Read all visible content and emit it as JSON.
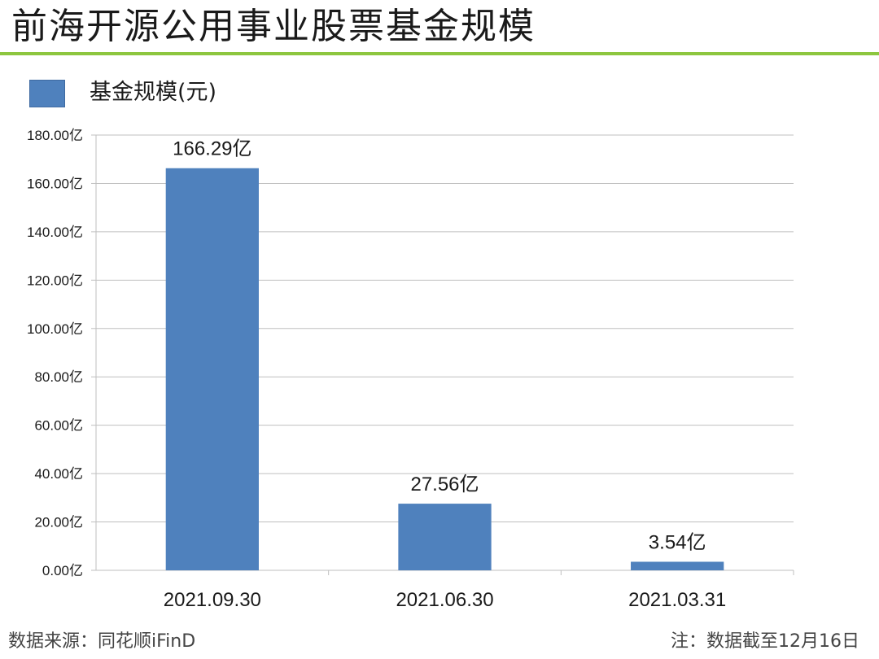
{
  "page": {
    "title": "前海开源公用事业股票基金规模",
    "accent_color": "#8dc63f"
  },
  "legend": {
    "label": "基金规模(元)",
    "color": "#4f81bd"
  },
  "chart_data": {
    "type": "bar",
    "categories": [
      "2021.09.30",
      "2021.06.30",
      "2021.03.31"
    ],
    "series": [
      {
        "name": "基金规模(元)",
        "values": [
          166.29,
          27.56,
          3.54
        ],
        "value_labels": [
          "166.29亿",
          "27.56亿",
          "3.54亿"
        ],
        "color": "#4f81bd"
      }
    ],
    "yticks": [
      "0.00亿",
      "20.00亿",
      "40.00亿",
      "60.00亿",
      "80.00亿",
      "100.00亿",
      "120.00亿",
      "140.00亿",
      "160.00亿",
      "180.00亿"
    ],
    "ylim": [
      0,
      180
    ],
    "ytick_step": 20,
    "grid": true,
    "legend_position": "top-left"
  },
  "footer": {
    "source": "数据来源：同花顺iFinD",
    "note": "注：数据截至12月16日"
  }
}
